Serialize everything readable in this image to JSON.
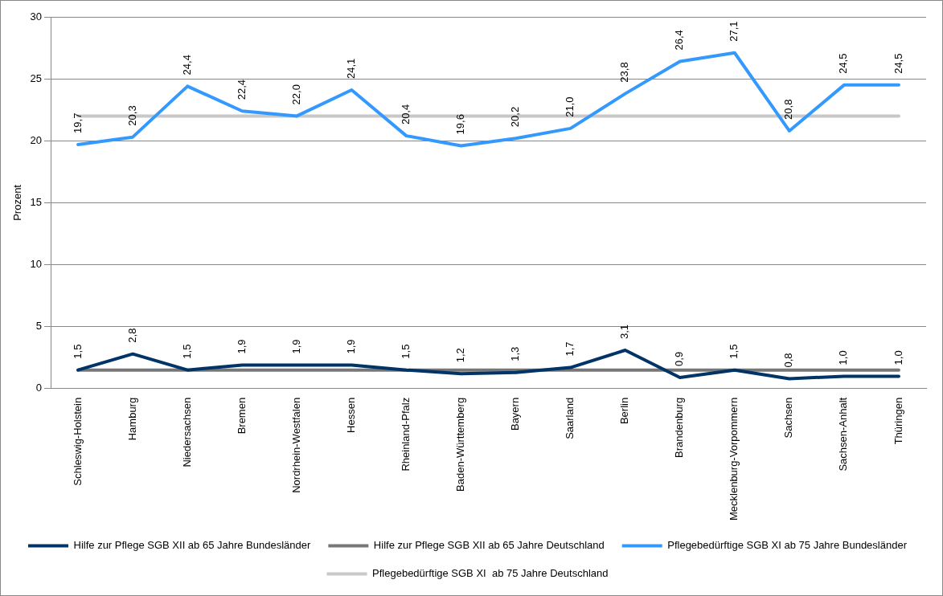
{
  "chart_data": {
    "type": "line",
    "ylabel": "Prozent",
    "categories": [
      "Schleswig-Holstein",
      "Hamburg",
      "Niedersachsen",
      "Bremen",
      "Nordrhein-Westfalen",
      "Hessen",
      "Rheinland-Pfalz",
      "Baden-Württemberg",
      "Bayern",
      "Saarland",
      "Berlin",
      "Brandenburg",
      "Mecklenburg-Vorpommern",
      "Sachsen",
      "Sachsen-Anhalt",
      "Thüringen"
    ],
    "series": [
      {
        "name": "Hilfe zur Pflege SGB XII ab 65 Jahre Bundesländer",
        "color": "#003366",
        "values": [
          1.5,
          2.8,
          1.5,
          1.9,
          1.9,
          1.9,
          1.5,
          1.2,
          1.3,
          1.7,
          3.1,
          0.9,
          1.5,
          0.8,
          1.0,
          1.0
        ],
        "value_labels": [
          "1,5",
          "2,8",
          "1,5",
          "1,9",
          "1,9",
          "1,9",
          "1,5",
          "1,2",
          "1,3",
          "1,7",
          "3,1",
          "0,9",
          "1,5",
          "0,8",
          "1,0",
          "1,0"
        ]
      },
      {
        "name": "Hilfe zur Pflege SGB XII ab 65 Jahre Deutschland",
        "color": "#777777",
        "values": [
          1.5,
          1.5,
          1.5,
          1.5,
          1.5,
          1.5,
          1.5,
          1.5,
          1.5,
          1.5,
          1.5,
          1.5,
          1.5,
          1.5,
          1.5,
          1.5
        ]
      },
      {
        "name": "Pflegebedürftige SGB XI ab 75 Jahre Bundesländer",
        "color": "#3399ff",
        "values": [
          19.7,
          20.3,
          24.4,
          22.4,
          22.0,
          24.1,
          20.4,
          19.6,
          20.2,
          21.0,
          23.8,
          26.4,
          27.1,
          20.8,
          24.5,
          24.5
        ],
        "value_labels": [
          "19,7",
          "20,3",
          "24,4",
          "22,4",
          "22,0",
          "24,1",
          "20,4",
          "19,6",
          "20,2",
          "21,0",
          "23,8",
          "26,4",
          "27,1",
          "20,8",
          "24,5",
          "24,5"
        ]
      },
      {
        "name": "Pflegebedürftige SGB XI  ab 75 Jahre Deutschland",
        "color": "#c8c8c8",
        "values": [
          22,
          22,
          22,
          22,
          22,
          22,
          22,
          22,
          22,
          22,
          22,
          22,
          22,
          22,
          22,
          22
        ]
      }
    ],
    "ylim": [
      0,
      30
    ],
    "yticks": [
      0,
      5,
      10,
      15,
      20,
      25,
      30
    ],
    "grid": "y",
    "legend": "bottom",
    "marker": "none",
    "line_style": "solid"
  }
}
